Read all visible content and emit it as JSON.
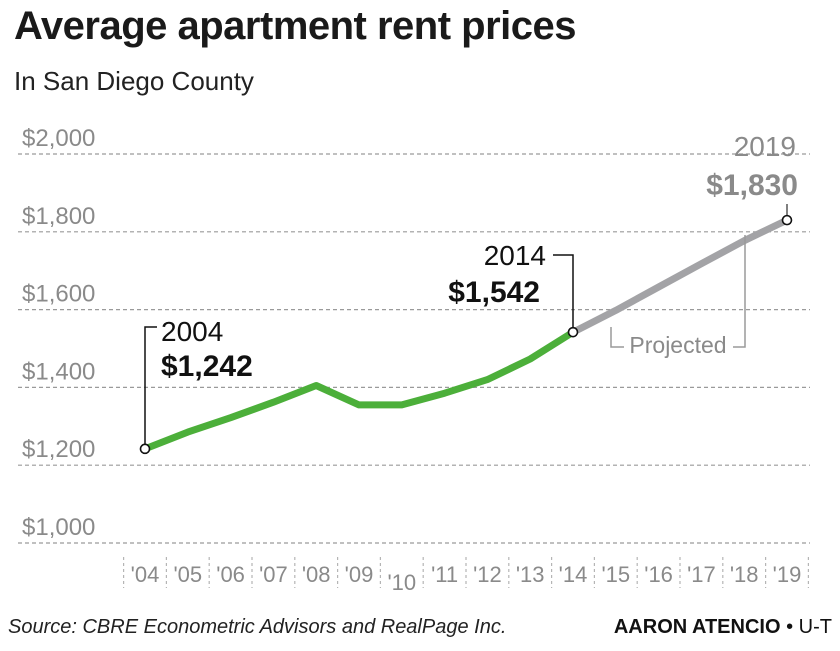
{
  "title": "Average apartment rent prices",
  "subtitle": "In San Diego County",
  "footer": {
    "source": "Source: CBRE Econometric Advisors and RealPage Inc.",
    "author": "AARON ATENCIO",
    "separator": "•",
    "outlet": "U-T"
  },
  "colors": {
    "actual": "#4caf3a",
    "projected": "#a3a3a6",
    "grid": "#9a9a9a",
    "tick_label": "#8a8a8a",
    "text": "#111111"
  },
  "chart_data": {
    "type": "line",
    "title": "Average apartment rent prices",
    "subtitle": "In San Diego County",
    "x_tick_labels": [
      "'04",
      "'05",
      "'06",
      "'07",
      "'08",
      "'09",
      "'10",
      "'11",
      "'12",
      "'13",
      "'14",
      "'15",
      "'16",
      "'17",
      "'18",
      "'19"
    ],
    "y_tick_labels": [
      "$1,000",
      "$1,200",
      "$1,400",
      "$1,600",
      "$1,800",
      "$2,000"
    ],
    "y_ticks": [
      1000,
      1200,
      1400,
      1600,
      1800,
      2000
    ],
    "xlim": [
      2004,
      2019
    ],
    "ylim": [
      1000,
      2000
    ],
    "grid": true,
    "series": [
      {
        "key": "actual",
        "x": [
          2004,
          2005,
          2006,
          2007,
          2008,
          2009,
          2010,
          2011,
          2012,
          2013,
          2014
        ],
        "y": [
          1242,
          1285,
          1322,
          1362,
          1405,
          1355,
          1355,
          1385,
          1420,
          1473,
          1542
        ]
      },
      {
        "key": "projected",
        "x": [
          2014,
          2015,
          2016,
          2017,
          2018,
          2019
        ],
        "y": [
          1542,
          1598,
          1658,
          1718,
          1777,
          1830
        ]
      }
    ],
    "annotations": [
      {
        "year_label": "2004",
        "value_label": "$1,242",
        "x": 2004,
        "y": 1242
      },
      {
        "year_label": "2014",
        "value_label": "$1,542",
        "x": 2014,
        "y": 1542
      },
      {
        "year_label": "2019",
        "value_label": "$1,830",
        "x": 2019,
        "y": 1830
      }
    ],
    "projected_label": "Projected"
  }
}
